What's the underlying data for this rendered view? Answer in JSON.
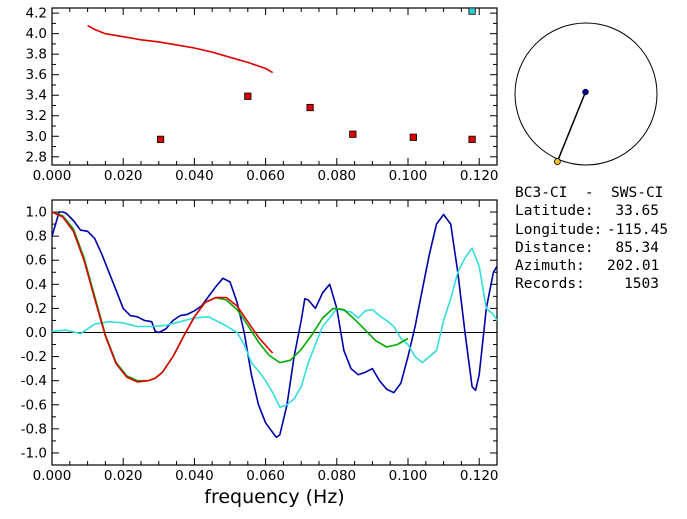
{
  "station_info": {
    "pair": "BC3-CI  -  SWS-CI",
    "rows": [
      {
        "label": "Latitude:",
        "value": "33.65"
      },
      {
        "label": "Longitude:",
        "value": "-115.45"
      },
      {
        "label": "Distance:",
        "value": "85.34"
      },
      {
        "label": "Azimuth:",
        "value": "202.01"
      },
      {
        "label": "Records:",
        "value": "1503"
      }
    ]
  },
  "azimuth_map": {
    "azimuth_deg": 202.01,
    "station_color": "#00008b",
    "remote_color": "#f5c518",
    "line_color": "#000000",
    "circle_color": "#000000"
  },
  "chart_data": [
    {
      "type": "scatter",
      "xlim": [
        0.0,
        0.125
      ],
      "ylim": [
        2.72,
        4.25
      ],
      "xticks": [
        0.0,
        0.02,
        0.04,
        0.06,
        0.08,
        0.1,
        0.12
      ],
      "xtick_labels": [
        "0.000",
        "0.020",
        "0.040",
        "0.060",
        "0.080",
        "0.100",
        "0.120"
      ],
      "yticks": [
        2.8,
        3.0,
        3.2,
        3.4,
        3.6,
        3.8,
        4.0,
        4.2
      ],
      "ytick_labels": [
        "2.8",
        "3.0",
        "3.2",
        "3.4",
        "3.6",
        "3.8",
        "4.0",
        "4.2"
      ],
      "curve": {
        "color": "#dd0000",
        "x": [
          0.01,
          0.012,
          0.015,
          0.02,
          0.025,
          0.03,
          0.035,
          0.04,
          0.045,
          0.05,
          0.055,
          0.06,
          0.062
        ],
        "y": [
          4.08,
          4.04,
          4.0,
          3.97,
          3.94,
          3.92,
          3.89,
          3.86,
          3.82,
          3.77,
          3.72,
          3.66,
          3.62
        ]
      },
      "points": [
        {
          "x": 0.0305,
          "y": 2.97,
          "color": "#dd0000"
        },
        {
          "x": 0.055,
          "y": 3.39,
          "color": "#dd0000"
        },
        {
          "x": 0.0725,
          "y": 3.28,
          "color": "#dd0000"
        },
        {
          "x": 0.0845,
          "y": 3.02,
          "color": "#dd0000"
        },
        {
          "x": 0.1015,
          "y": 2.99,
          "color": "#dd0000"
        },
        {
          "x": 0.118,
          "y": 2.97,
          "color": "#dd0000"
        },
        {
          "x": 0.118,
          "y": 4.22,
          "color": "#33cccc"
        }
      ]
    },
    {
      "type": "line",
      "xlabel": "frequency (Hz)",
      "xlim": [
        0.0,
        0.125
      ],
      "ylim": [
        -1.1,
        1.1
      ],
      "xticks": [
        0.0,
        0.02,
        0.04,
        0.06,
        0.08,
        0.1,
        0.12
      ],
      "xtick_labels": [
        "0.000",
        "0.020",
        "0.040",
        "0.060",
        "0.080",
        "0.100",
        "0.120"
      ],
      "yticks": [
        -1.0,
        -0.8,
        -0.6,
        -0.4,
        -0.2,
        0.0,
        0.2,
        0.4,
        0.6,
        0.8,
        1.0
      ],
      "ytick_labels": [
        "-1.0",
        "-0.8",
        "-0.6",
        "-0.4",
        "-0.2",
        "0.0",
        "0.2",
        "0.4",
        "0.6",
        "0.8",
        "1.0"
      ],
      "zero_line": true,
      "series": [
        {
          "color": "#0000aa",
          "x": [
            0.0,
            0.001,
            0.002,
            0.003,
            0.004,
            0.006,
            0.008,
            0.01,
            0.012,
            0.014,
            0.016,
            0.018,
            0.02,
            0.022,
            0.024,
            0.026,
            0.028,
            0.029,
            0.03,
            0.032,
            0.034,
            0.036,
            0.038,
            0.04,
            0.042,
            0.044,
            0.046,
            0.048,
            0.05,
            0.052,
            0.054,
            0.056,
            0.058,
            0.06,
            0.062,
            0.063,
            0.064,
            0.066,
            0.068,
            0.07,
            0.071,
            0.072,
            0.074,
            0.076,
            0.078,
            0.08,
            0.082,
            0.084,
            0.086,
            0.088,
            0.09,
            0.092,
            0.094,
            0.096,
            0.098,
            0.1,
            0.102,
            0.104,
            0.106,
            0.108,
            0.11,
            0.112,
            0.114,
            0.116,
            0.118,
            0.119,
            0.12,
            0.122,
            0.124,
            0.125
          ],
          "y": [
            0.8,
            0.9,
            1.0,
            1.0,
            0.99,
            0.93,
            0.85,
            0.84,
            0.78,
            0.65,
            0.5,
            0.35,
            0.2,
            0.14,
            0.13,
            0.1,
            0.09,
            0.01,
            0.0,
            0.03,
            0.1,
            0.14,
            0.15,
            0.18,
            0.22,
            0.3,
            0.38,
            0.45,
            0.42,
            0.25,
            0.0,
            -0.35,
            -0.6,
            -0.75,
            -0.83,
            -0.87,
            -0.85,
            -0.6,
            -0.2,
            0.1,
            0.28,
            0.27,
            0.2,
            0.33,
            0.4,
            0.2,
            -0.15,
            -0.3,
            -0.35,
            -0.33,
            -0.3,
            -0.4,
            -0.47,
            -0.5,
            -0.42,
            -0.2,
            0.05,
            0.35,
            0.65,
            0.9,
            0.98,
            0.9,
            0.5,
            0.0,
            -0.45,
            -0.48,
            -0.35,
            0.2,
            0.5,
            0.55
          ]
        },
        {
          "color": "#33dddd",
          "x": [
            0.0,
            0.004,
            0.008,
            0.012,
            0.016,
            0.02,
            0.024,
            0.028,
            0.032,
            0.036,
            0.04,
            0.044,
            0.048,
            0.052,
            0.054,
            0.056,
            0.058,
            0.06,
            0.062,
            0.064,
            0.066,
            0.068,
            0.07,
            0.072,
            0.074,
            0.076,
            0.078,
            0.08,
            0.082,
            0.084,
            0.086,
            0.088,
            0.09,
            0.092,
            0.094,
            0.096,
            0.098,
            0.1,
            0.102,
            0.104,
            0.106,
            0.108,
            0.11,
            0.112,
            0.114,
            0.116,
            0.118,
            0.12,
            0.122,
            0.124,
            0.125
          ],
          "y": [
            0.01,
            0.02,
            -0.01,
            0.07,
            0.09,
            0.08,
            0.05,
            0.05,
            0.06,
            0.09,
            0.12,
            0.13,
            0.07,
            0.0,
            -0.1,
            -0.25,
            -0.32,
            -0.4,
            -0.5,
            -0.62,
            -0.6,
            -0.55,
            -0.45,
            -0.25,
            -0.1,
            0.05,
            0.12,
            0.2,
            0.18,
            0.17,
            0.12,
            0.18,
            0.19,
            0.14,
            0.1,
            0.05,
            -0.05,
            -0.1,
            -0.2,
            -0.25,
            -0.2,
            -0.15,
            0.1,
            0.28,
            0.5,
            0.62,
            0.7,
            0.55,
            0.2,
            0.15,
            0.1
          ]
        },
        {
          "color": "#00aa00",
          "x": [
            0.0,
            0.003,
            0.006,
            0.009,
            0.012,
            0.015,
            0.018,
            0.021,
            0.024,
            0.027,
            0.029,
            0.031,
            0.034,
            0.037,
            0.04,
            0.043,
            0.046,
            0.049,
            0.052,
            0.055,
            0.058,
            0.061,
            0.064,
            0.067,
            0.07,
            0.073,
            0.076,
            0.079,
            0.082,
            0.085,
            0.088,
            0.091,
            0.094,
            0.097,
            0.1
          ],
          "y": [
            1.0,
            0.97,
            0.86,
            0.62,
            0.3,
            -0.02,
            -0.25,
            -0.36,
            -0.4,
            -0.4,
            -0.38,
            -0.33,
            -0.2,
            -0.03,
            0.13,
            0.25,
            0.29,
            0.27,
            0.19,
            0.06,
            -0.08,
            -0.19,
            -0.25,
            -0.23,
            -0.14,
            -0.02,
            0.12,
            0.2,
            0.19,
            0.11,
            0.02,
            -0.07,
            -0.12,
            -0.1,
            -0.05
          ]
        },
        {
          "color": "#dd0000",
          "x": [
            0.0,
            0.003,
            0.006,
            0.009,
            0.012,
            0.015,
            0.018,
            0.021,
            0.024,
            0.027,
            0.029,
            0.031,
            0.034,
            0.037,
            0.04,
            0.043,
            0.046,
            0.049,
            0.052,
            0.055,
            0.058,
            0.061,
            0.062
          ],
          "y": [
            1.0,
            0.96,
            0.84,
            0.6,
            0.28,
            -0.03,
            -0.26,
            -0.37,
            -0.41,
            -0.4,
            -0.38,
            -0.33,
            -0.2,
            -0.03,
            0.13,
            0.25,
            0.29,
            0.29,
            0.22,
            0.09,
            -0.04,
            -0.14,
            -0.17
          ]
        }
      ]
    }
  ]
}
